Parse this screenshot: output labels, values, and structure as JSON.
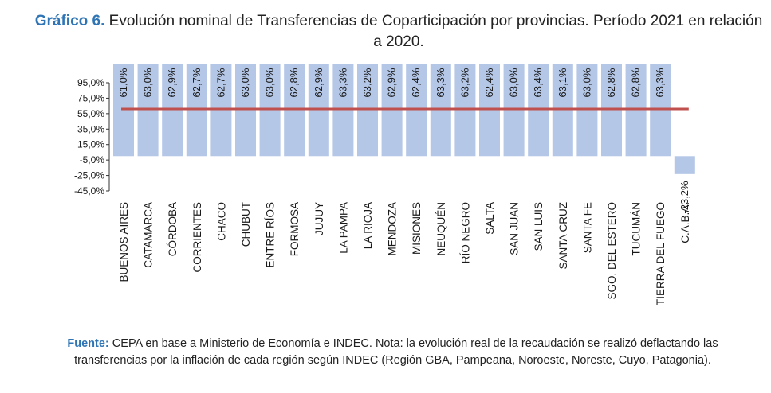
{
  "header": {
    "label": "Gráfico 6.",
    "title": "Evolución nominal de Transferencias de Coparticipación por provincias. Período 2021 en relación a 2020."
  },
  "footer": {
    "label": "Fuente:",
    "text": "CEPA en base a Ministerio de Economía e INDEC. Nota: la evolución real de la recaudación se realizó deflactando las transferencias por la inflación de cada región según INDEC (Región GBA, Pampeana, Noroeste, Noreste, Cuyo, Patagonia)."
  },
  "colors": {
    "bar": "#b4c7e7",
    "line": "#c0504d",
    "axis": "#333333",
    "text": "#1a1a1a",
    "accent": "#2f75b5"
  },
  "chart_data": {
    "type": "bar",
    "categories": [
      "BUENOS AIRES",
      "CATAMARCA",
      "CÓRDOBA",
      "CORRIENTES",
      "CHACO",
      "CHUBUT",
      "ENTRE RÍOS",
      "FORMOSA",
      "JUJUY",
      "LA PAMPA",
      "LA RIOJA",
      "MENDOZA",
      "MISIONES",
      "NEUQUÉN",
      "RÍO NEGRO",
      "SALTA",
      "SAN JUAN",
      "SAN LUIS",
      "SANTA CRUZ",
      "SANTA FE",
      "SGO. DEL ESTERO",
      "TUCUMÁN",
      "TIERRA DEL FUEGO",
      "C.A.B.A."
    ],
    "values": [
      61.0,
      63.0,
      62.9,
      62.7,
      62.7,
      63.0,
      63.0,
      62.8,
      62.9,
      63.3,
      63.2,
      62.9,
      62.4,
      63.3,
      63.2,
      62.4,
      63.0,
      63.4,
      63.1,
      63.0,
      62.8,
      62.8,
      63.3,
      -23.2
    ],
    "data_labels": [
      "61,0%",
      "63,0%",
      "62,9%",
      "62,7%",
      "62,7%",
      "63,0%",
      "63,0%",
      "62,8%",
      "62,9%",
      "63,3%",
      "63,2%",
      "62,9%",
      "62,4%",
      "63,3%",
      "63,2%",
      "62,4%",
      "63,0%",
      "63,4%",
      "63,1%",
      "63,0%",
      "62,8%",
      "62,8%",
      "63,3%",
      "-23,2%"
    ],
    "reference_line": {
      "value": 62.6
    },
    "yticks": [
      95.0,
      75.0,
      55.0,
      35.0,
      15.0,
      -5.0,
      -25.0,
      -45.0
    ],
    "ytick_labels": [
      "95,0%",
      "75,0%",
      "55,0%",
      "35,0%",
      "15,0%",
      "-5,0%",
      "-25,0%",
      "-45,0%"
    ],
    "ylim": [
      -45,
      95
    ],
    "grid": false,
    "legend": "none"
  }
}
